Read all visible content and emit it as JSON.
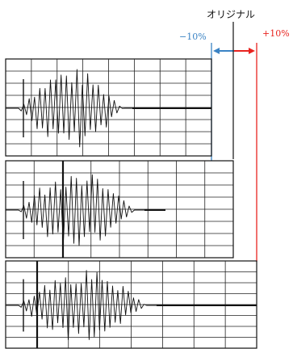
{
  "labels": {
    "original": "オリジナル",
    "minus": "−10%",
    "plus": "+10%"
  },
  "colors": {
    "minus": "#3a83c4",
    "plus": "#e8231f",
    "ink": "#111111"
  },
  "panels": [
    {
      "name": "compressed-minus-10-percent"
    },
    {
      "name": "original"
    },
    {
      "name": "stretched-plus-10-percent"
    }
  ]
}
